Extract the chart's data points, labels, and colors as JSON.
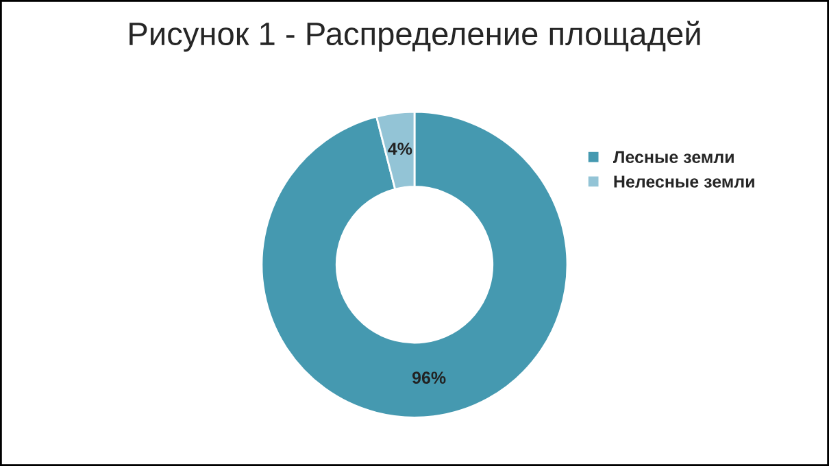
{
  "chart_data": {
    "type": "donut",
    "title": "Рисунок 1 - Распределение площадей",
    "categories": [
      "Лесные земли",
      "Нелесные земли"
    ],
    "values": [
      96,
      4
    ],
    "colors": [
      "#4599b0",
      "#93c4d6"
    ],
    "value_labels": [
      "96%",
      "4%"
    ],
    "legend": "top right"
  }
}
